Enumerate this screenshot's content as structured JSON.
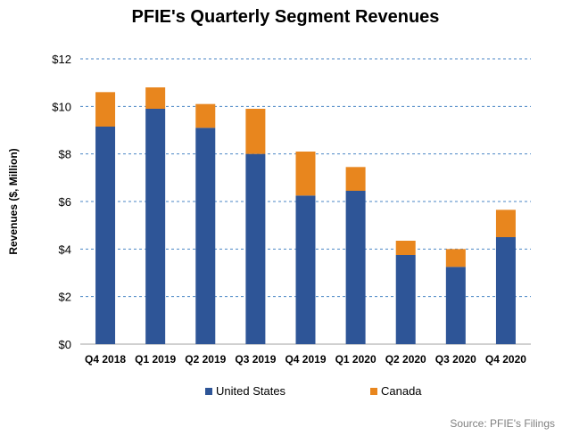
{
  "chart_data": {
    "type": "bar",
    "stacked": true,
    "title": "PFIE's Quarterly Segment Revenues",
    "xlabel": "",
    "ylabel": "Revenues ($, Million)",
    "ylim": [
      0,
      12
    ],
    "yticks": [
      0,
      2,
      4,
      6,
      8,
      10,
      12
    ],
    "ytick_labels": [
      "$0",
      "$2",
      "$4",
      "$6",
      "$8",
      "$10",
      "$12"
    ],
    "grid": true,
    "legend_position": "bottom",
    "categories": [
      "Q4 2018",
      "Q1 2019",
      "Q2 2019",
      "Q3 2019",
      "Q4 2019",
      "Q1 2020",
      "Q2 2020",
      "Q3 2020",
      "Q4 2020"
    ],
    "series": [
      {
        "name": "United States",
        "color": "#2e5597",
        "values": [
          9.15,
          9.9,
          9.1,
          8.0,
          6.25,
          6.45,
          3.75,
          3.25,
          4.5
        ]
      },
      {
        "name": "Canada",
        "color": "#e8861e",
        "values": [
          1.45,
          0.9,
          1.0,
          1.9,
          1.85,
          1.0,
          0.6,
          0.75,
          1.15
        ]
      }
    ],
    "source": "Source: PFIE's Filings"
  }
}
